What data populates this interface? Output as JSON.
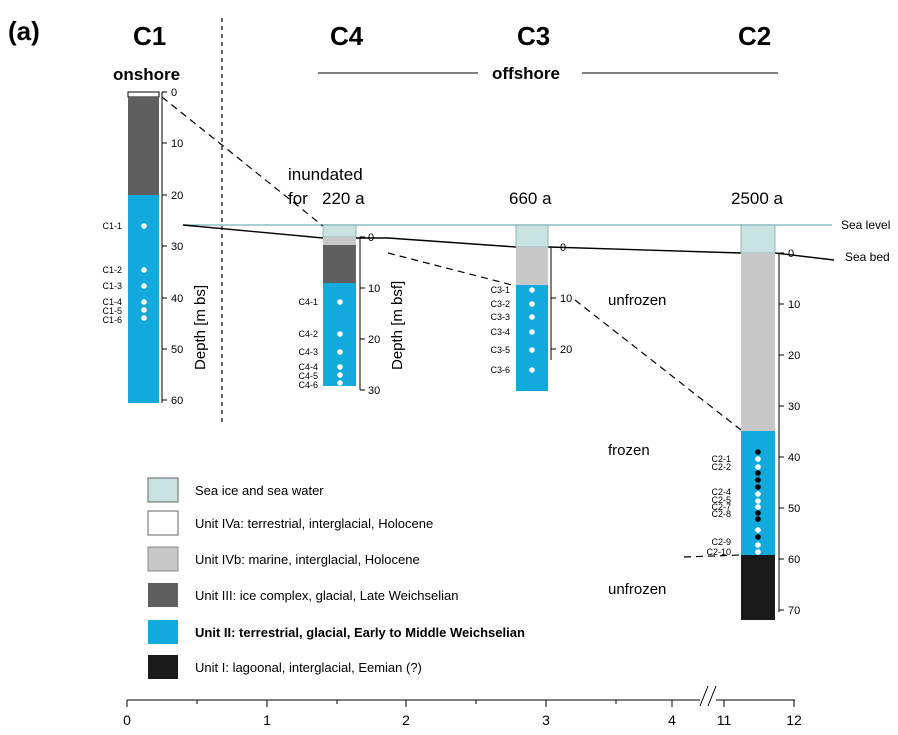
{
  "panel_label": "(a)",
  "core_titles": {
    "c1": "C1",
    "c4": "C4",
    "c3": "C3",
    "c2": "C2"
  },
  "region_labels": {
    "onshore": "onshore",
    "offshore": "offshore"
  },
  "inundation": {
    "line1": "inundated",
    "line2_prefix": "for",
    "c4": "220 a",
    "c3": "660 a",
    "c2": "2500 a"
  },
  "reference_labels": {
    "sea_level": "Sea level",
    "sea_bed": "Sea bed"
  },
  "state_labels": {
    "unfrozen_upper": "unfrozen",
    "frozen": "frozen",
    "unfrozen_lower": "unfrozen"
  },
  "axis_labels": {
    "c1_depth": "Depth [m bs]",
    "c4_depth": "Depth [m bsf]"
  },
  "colors": {
    "sea": "#c9e3e3",
    "unit_iva": "#ffffff",
    "unit_ivb": "#c8c8c8",
    "unit_iii": "#5f5f5f",
    "unit_ii": "#12a9dc",
    "unit_i": "#1a1a1a"
  },
  "legend": [
    {
      "key": "sea",
      "label": "Sea ice and sea water",
      "bold": false
    },
    {
      "key": "unit_iva",
      "label": "Unit IVa: terrestrial, interglacial, Holocene",
      "bold": false
    },
    {
      "key": "unit_ivb",
      "label": "Unit IVb: marine, interglacial, Holocene",
      "bold": false
    },
    {
      "key": "unit_iii",
      "label": "Unit III: ice complex, glacial, Late Weichselian",
      "bold": false
    },
    {
      "key": "unit_ii",
      "label": "Unit II: terrestrial, glacial, Early to Middle Weichselian",
      "bold": true
    },
    {
      "key": "unit_i",
      "label": "Unit I: lagoonal, interglacial, Eemian (?)",
      "bold": false
    }
  ],
  "bottom_axis": {
    "ticks": [
      "0",
      "1",
      "2",
      "3",
      "4",
      "11",
      "12"
    ]
  },
  "cores": {
    "c1": {
      "ticks": [
        "0",
        "10",
        "20",
        "30",
        "40",
        "50",
        "60"
      ],
      "samples": [
        "C1-1",
        "C1-2",
        "C1-3",
        "C1-4",
        "C1-5",
        "C1-6"
      ],
      "layers": [
        {
          "unit": "unit_iva",
          "top_m": 0,
          "bottom_m": 0.5
        },
        {
          "unit": "unit_iii",
          "top_m": 0.5,
          "bottom_m": 19.5
        },
        {
          "unit": "unit_ii",
          "top_m": 19.5,
          "bottom_m": 60
        }
      ]
    },
    "c4": {
      "ticks": [
        "0",
        "10",
        "20",
        "30"
      ],
      "samples": [
        "C4-1",
        "C4-2",
        "C4-3",
        "C4-4",
        "C4-5",
        "C4-6"
      ],
      "layers": [
        {
          "unit": "sea",
          "top_m": -2.4,
          "bottom_m": 0
        },
        {
          "unit": "unit_ivb",
          "top_m": 0,
          "bottom_m": 1.3
        },
        {
          "unit": "unit_iii",
          "top_m": 1.3,
          "bottom_m": 9.3
        },
        {
          "unit": "unit_ii",
          "top_m": 9.3,
          "bottom_m": 29.5
        }
      ]
    },
    "c3": {
      "ticks": [
        "0",
        "10",
        "20"
      ],
      "samples": [
        "C3-1",
        "C3-2",
        "C3-3",
        "C3-4",
        "C3-5",
        "C3-6"
      ],
      "layers": [
        {
          "unit": "sea",
          "top_m": -2.2,
          "bottom_m": 0
        },
        {
          "unit": "unit_ivb",
          "top_m": 0,
          "bottom_m": 7.6
        },
        {
          "unit": "unit_ii",
          "top_m": 7.6,
          "bottom_m": 28
        }
      ]
    },
    "c2": {
      "ticks": [
        "0",
        "10",
        "20",
        "30",
        "40",
        "50",
        "60",
        "70"
      ],
      "samples": [
        "C2-1",
        "C2-2",
        "C2-4",
        "C2-5",
        "C2-7",
        "C2-8",
        "C2-9",
        "C2-10"
      ],
      "layers": [
        {
          "unit": "sea",
          "top_m": -2.6,
          "bottom_m": 0
        },
        {
          "unit": "unit_ivb",
          "top_m": 0,
          "bottom_m": 35
        },
        {
          "unit": "unit_ii",
          "top_m": 35,
          "bottom_m": 59
        },
        {
          "unit": "unit_i",
          "top_m": 59,
          "bottom_m": 71
        }
      ]
    }
  }
}
